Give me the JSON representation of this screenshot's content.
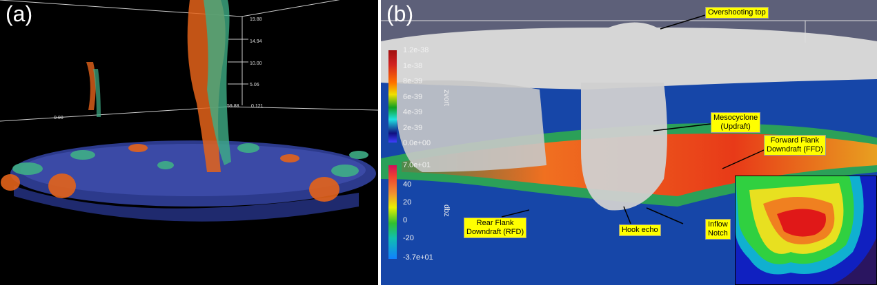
{
  "panel_a": {
    "label": "(a)",
    "axis_ticks": [
      "19.88",
      "14.94",
      "10.00",
      "5.06",
      "0.121",
      "59.88",
      "0.00"
    ]
  },
  "panel_b": {
    "label": "(b)",
    "colorbar_zvort": {
      "title": "zvort",
      "ticks": [
        "1.2e-38",
        "1e-38",
        "8e-39",
        "6e-39",
        "4e-39",
        "2e-39",
        "0.0e+00"
      ]
    },
    "colorbar_dbz": {
      "title": "dbz",
      "ticks": [
        "7.0e+01",
        "40",
        "20",
        "0",
        "-20",
        "-3.7e+01"
      ]
    },
    "annotations": {
      "overshooting_top": "Overshooting top",
      "mesocyclone": "Mesocyclone\n(Updraft)",
      "ffd": "Forward Flank\nDowndraft (FFD)",
      "rfd": "Rear Flank\nDowndraft (RFD)",
      "hook_echo": "Hook echo",
      "inflow_notch": "Inflow\nNotch"
    }
  },
  "colors": {
    "floor_blue": "#1646a8",
    "vort_orange": "#ff6a10",
    "vort_green": "#3fae86",
    "cloud": "#d8d8d8"
  }
}
